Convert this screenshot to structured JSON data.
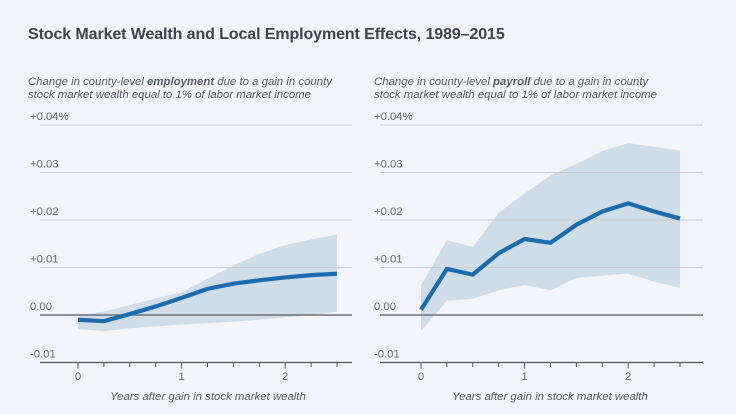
{
  "header": {
    "title": "Stock Market Wealth and Local Employment Effects, 1989–2015"
  },
  "panels": [
    {
      "subtitle": {
        "before": "Change in county-level ",
        "bold": "employment",
        "after": " due to a gain in county\nstock market wealth equal to 1% of labor market income"
      },
      "xlabel": "Years after gain in stock market wealth"
    },
    {
      "subtitle": {
        "before": "Change in county-level ",
        "bold": "payroll",
        "after": " due to a gain in county\nstock market wealth equal to 1% of labor market income"
      },
      "xlabel": "Years after gain in stock market wealth"
    }
  ],
  "chart_data": [
    {
      "type": "line",
      "panel": "left",
      "title": "Change in county-level employment due to a gain in county stock market wealth equal to 1% of labor market income",
      "x": [
        0,
        0.25,
        0.5,
        0.75,
        1,
        1.25,
        1.5,
        1.75,
        2,
        2.25,
        2.5
      ],
      "series": [
        {
          "name": "employment effect (point estimate)",
          "values": [
            -0.001,
            -0.0013,
            0.0002,
            0.0018,
            0.0036,
            0.0055,
            0.0066,
            0.0073,
            0.0079,
            0.0084,
            0.0087
          ]
        },
        {
          "name": "confidence band upper",
          "values": [
            0.0,
            0.0007,
            0.0021,
            0.0035,
            0.0048,
            0.0076,
            0.0104,
            0.0129,
            0.0147,
            0.0159,
            0.0169
          ]
        },
        {
          "name": "confidence band lower",
          "values": [
            -0.003,
            -0.0034,
            -0.0028,
            -0.0024,
            -0.002,
            -0.0017,
            -0.0014,
            -0.001,
            -0.0005,
            0.0,
            0.0007
          ]
        }
      ],
      "xlabel": "Years after gain in stock market wealth",
      "ylabel": "",
      "xlim": [
        0,
        2.5
      ],
      "ylim": [
        -0.01,
        0.04
      ],
      "y_ticks": {
        "values": [
          0.04,
          0.03,
          0.02,
          0.01,
          0,
          -0.01
        ],
        "labels": [
          "+0.04%",
          "+0.03",
          "+0.02",
          "+0.01",
          "0.00",
          "-0.01"
        ]
      },
      "x_ticks": {
        "major": [
          0,
          1,
          2
        ],
        "labels": [
          "0",
          "1",
          "2"
        ],
        "minor_step": 0.25
      },
      "grid": true,
      "legend": false
    },
    {
      "type": "line",
      "panel": "right",
      "title": "Change in county-level payroll due to a gain in county stock market wealth equal to 1% of labor market income",
      "x": [
        0,
        0.25,
        0.5,
        0.75,
        1,
        1.25,
        1.5,
        1.75,
        2,
        2.25,
        2.5
      ],
      "series": [
        {
          "name": "payroll effect (point estimate)",
          "values": [
            0.0011,
            0.0097,
            0.0085,
            0.013,
            0.016,
            0.0152,
            0.019,
            0.0218,
            0.0235,
            0.0218,
            0.0203
          ]
        },
        {
          "name": "confidence band upper",
          "values": [
            0.0062,
            0.0158,
            0.0143,
            0.0215,
            0.0256,
            0.0294,
            0.0318,
            0.0345,
            0.0362,
            0.0354,
            0.0346
          ]
        },
        {
          "name": "confidence band lower",
          "values": [
            -0.0034,
            0.003,
            0.0034,
            0.0052,
            0.0063,
            0.0052,
            0.0078,
            0.0083,
            0.0087,
            0.007,
            0.0057
          ]
        }
      ],
      "xlabel": "Years after gain in stock market wealth",
      "ylabel": "",
      "xlim": [
        0,
        2.5
      ],
      "ylim": [
        -0.01,
        0.04
      ],
      "y_ticks": {
        "values": [
          0.04,
          0.03,
          0.02,
          0.01,
          0,
          -0.01
        ],
        "labels": [
          "+0.04%",
          "+0.03",
          "+0.02",
          "+0.01",
          "0.00",
          "-0.01"
        ]
      },
      "x_ticks": {
        "major": [
          0,
          1,
          2
        ],
        "labels": [
          "0",
          "1",
          "2"
        ],
        "minor_step": 0.25
      },
      "grid": true,
      "legend": false
    }
  ],
  "colors": {
    "background": "#f1f5f9",
    "band": "#cfdde9",
    "line": "#1a6cae",
    "gridline": "#c7cdd4",
    "axis_dark": "#55595f",
    "tick_label": "#636a72",
    "title_text": "#3d444c",
    "subtitle_text": "#565d65"
  }
}
